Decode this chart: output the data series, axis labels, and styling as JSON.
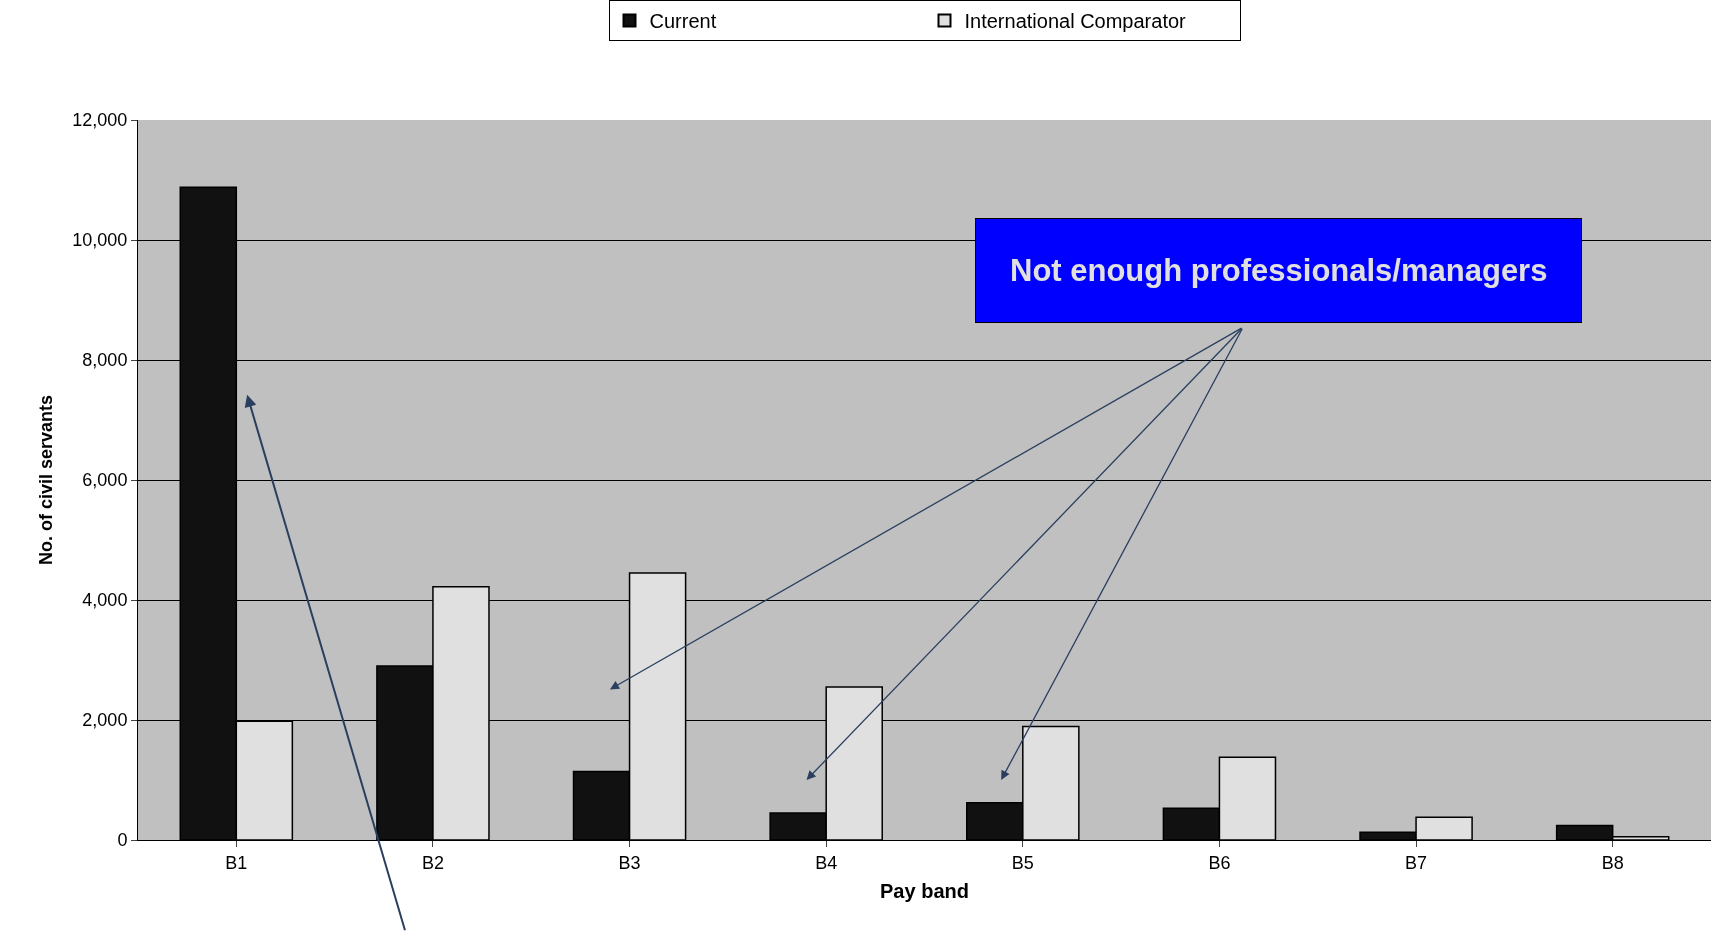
{
  "chart_data": {
    "type": "bar",
    "xlabel": "Pay band",
    "ylabel": "No. of civil servants",
    "categories": [
      "B1",
      "B2",
      "B3",
      "B4",
      "B5",
      "B6",
      "B7",
      "B8"
    ],
    "series": [
      {
        "name": "Current",
        "color": "#111111",
        "values": [
          10880,
          2900,
          1140,
          450,
          620,
          530,
          130,
          240
        ]
      },
      {
        "name": "International Comparator",
        "color": "#e0e0e0",
        "values": [
          1980,
          4220,
          4450,
          2550,
          1890,
          1380,
          380,
          55
        ]
      }
    ],
    "ylim": [
      0,
      12000
    ],
    "yticks": [
      {
        "value": 0,
        "label": "0"
      },
      {
        "value": 2000,
        "label": "2,000"
      },
      {
        "value": 4000,
        "label": "4,000"
      },
      {
        "value": 6000,
        "label": "6,000"
      },
      {
        "value": 8000,
        "label": "8,000"
      },
      {
        "value": 10000,
        "label": "10,000"
      },
      {
        "value": 12000,
        "label": "12,000"
      }
    ],
    "grid": "y",
    "legend": "top",
    "annotations": [
      "Not enough professionals/managers"
    ]
  }
}
